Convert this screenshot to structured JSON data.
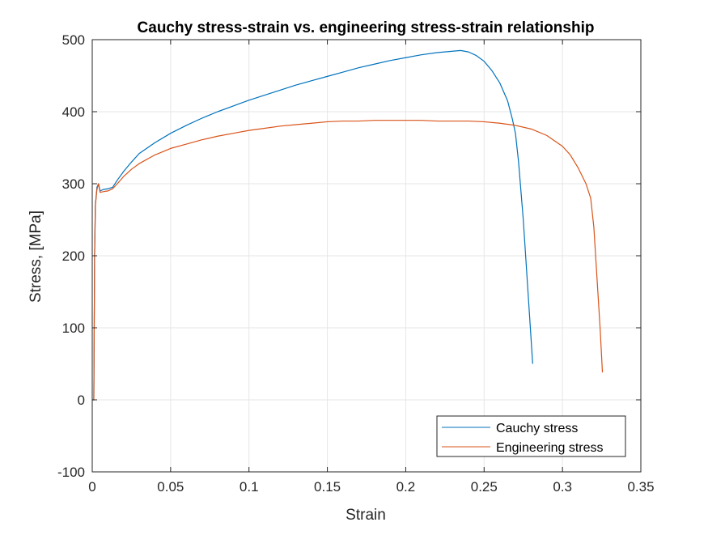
{
  "chart_data": {
    "type": "line",
    "title": "Cauchy stress-strain vs. engineering stress-strain relationship",
    "xlabel": "Strain",
    "ylabel": "Stress, [MPa]",
    "xlim": [
      0,
      0.35
    ],
    "ylim": [
      -100,
      500
    ],
    "x_ticks": [
      0,
      0.05,
      0.1,
      0.15,
      0.2,
      0.25,
      0.3,
      0.35
    ],
    "x_tick_labels": [
      "0",
      "0.05",
      "0.1",
      "0.15",
      "0.2",
      "0.25",
      "0.3",
      "0.35"
    ],
    "y_ticks": [
      -100,
      0,
      100,
      200,
      300,
      400,
      500
    ],
    "y_tick_labels": [
      "-100",
      "0",
      "100",
      "200",
      "300",
      "400",
      "500"
    ],
    "grid": true,
    "legend_position": "bottom-right",
    "series": [
      {
        "name": "Cauchy stress",
        "color": "#0072BD",
        "points": [
          [
            0.0,
            0
          ],
          [
            0.001,
            0
          ],
          [
            0.0015,
            200
          ],
          [
            0.002,
            270
          ],
          [
            0.003,
            295
          ],
          [
            0.004,
            300
          ],
          [
            0.005,
            290
          ],
          [
            0.007,
            292
          ],
          [
            0.01,
            293
          ],
          [
            0.013,
            295
          ],
          [
            0.016,
            305
          ],
          [
            0.02,
            317
          ],
          [
            0.025,
            330
          ],
          [
            0.03,
            342
          ],
          [
            0.04,
            357
          ],
          [
            0.05,
            370
          ],
          [
            0.06,
            381
          ],
          [
            0.07,
            391
          ],
          [
            0.08,
            400
          ],
          [
            0.09,
            408
          ],
          [
            0.1,
            416
          ],
          [
            0.11,
            423
          ],
          [
            0.12,
            430
          ],
          [
            0.13,
            437
          ],
          [
            0.14,
            443
          ],
          [
            0.15,
            449
          ],
          [
            0.16,
            455
          ],
          [
            0.17,
            461
          ],
          [
            0.18,
            466
          ],
          [
            0.19,
            471
          ],
          [
            0.2,
            475
          ],
          [
            0.21,
            479
          ],
          [
            0.22,
            482
          ],
          [
            0.23,
            484
          ],
          [
            0.235,
            485
          ],
          [
            0.24,
            483
          ],
          [
            0.245,
            478
          ],
          [
            0.25,
            470
          ],
          [
            0.255,
            457
          ],
          [
            0.26,
            440
          ],
          [
            0.265,
            415
          ],
          [
            0.268,
            390
          ],
          [
            0.27,
            370
          ],
          [
            0.272,
            330
          ],
          [
            0.275,
            250
          ],
          [
            0.278,
            150
          ],
          [
            0.281,
            50
          ]
        ]
      },
      {
        "name": "Engineering stress",
        "color": "#D95319",
        "points": [
          [
            0.0,
            0
          ],
          [
            0.001,
            0
          ],
          [
            0.0015,
            200
          ],
          [
            0.002,
            270
          ],
          [
            0.003,
            292
          ],
          [
            0.004,
            300
          ],
          [
            0.005,
            288
          ],
          [
            0.007,
            289
          ],
          [
            0.01,
            290
          ],
          [
            0.013,
            293
          ],
          [
            0.016,
            300
          ],
          [
            0.02,
            310
          ],
          [
            0.025,
            320
          ],
          [
            0.03,
            328
          ],
          [
            0.04,
            340
          ],
          [
            0.05,
            349
          ],
          [
            0.06,
            355
          ],
          [
            0.07,
            361
          ],
          [
            0.08,
            366
          ],
          [
            0.09,
            370
          ],
          [
            0.1,
            374
          ],
          [
            0.11,
            377
          ],
          [
            0.12,
            380
          ],
          [
            0.13,
            382
          ],
          [
            0.14,
            384
          ],
          [
            0.15,
            386
          ],
          [
            0.16,
            387
          ],
          [
            0.17,
            387
          ],
          [
            0.18,
            388
          ],
          [
            0.19,
            388
          ],
          [
            0.2,
            388
          ],
          [
            0.21,
            388
          ],
          [
            0.22,
            387
          ],
          [
            0.23,
            387
          ],
          [
            0.24,
            387
          ],
          [
            0.25,
            386
          ],
          [
            0.26,
            384
          ],
          [
            0.27,
            381
          ],
          [
            0.28,
            376
          ],
          [
            0.29,
            367
          ],
          [
            0.3,
            352
          ],
          [
            0.305,
            340
          ],
          [
            0.31,
            322
          ],
          [
            0.315,
            300
          ],
          [
            0.318,
            280
          ],
          [
            0.32,
            240
          ],
          [
            0.322,
            170
          ],
          [
            0.324,
            100
          ],
          [
            0.3255,
            38
          ]
        ]
      }
    ]
  }
}
